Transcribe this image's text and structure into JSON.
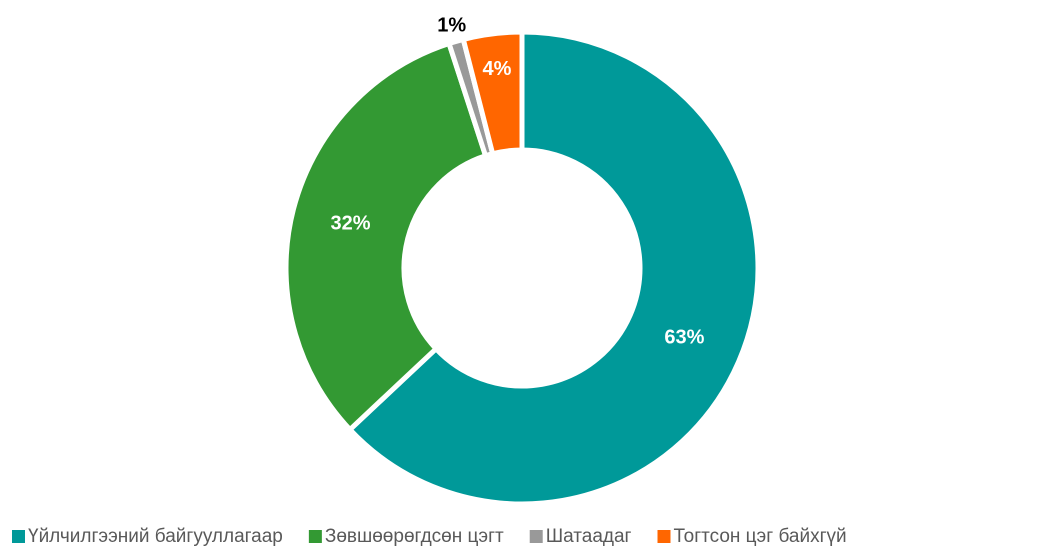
{
  "chart_data": {
    "type": "donut",
    "categories": [
      "Үйлчилгээний байгууллагаар",
      "Зөвшөөрөгдсөн цэгт",
      "Шатаадаг",
      "Тогтсон цэг байхгүй"
    ],
    "values": [
      63,
      32,
      1,
      4
    ],
    "value_labels": [
      "63%",
      "32%",
      "1%",
      "4%"
    ],
    "colors": [
      "#009999",
      "#339933",
      "#999999",
      "#ff6600"
    ],
    "legend": "bottom"
  }
}
